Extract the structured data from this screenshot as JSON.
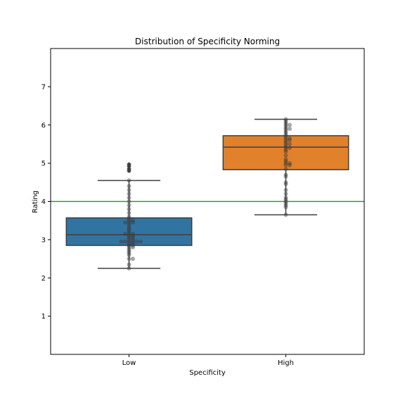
{
  "chart_data": {
    "type": "box",
    "title": "Distribution of Specificity Norming",
    "xlabel": "Specificity",
    "ylabel": "Rating",
    "categories": [
      "Low",
      "High"
    ],
    "ylim": [
      0,
      8
    ],
    "yticks": [
      1,
      2,
      3,
      4,
      5,
      6,
      7
    ],
    "grid": false,
    "reference_line": {
      "y": 4.0,
      "color": "#2ca02c"
    },
    "boxes": [
      {
        "category": "Low",
        "color": "#3274a1",
        "whisker_low": 2.25,
        "q1": 2.85,
        "median": 3.13,
        "q3": 3.57,
        "whisker_high": 4.55,
        "outliers": [
          4.8,
          4.85,
          4.92,
          4.97
        ]
      },
      {
        "category": "High",
        "color": "#e1812c",
        "whisker_low": 3.65,
        "q1": 4.83,
        "median": 5.42,
        "q3": 5.72,
        "whisker_high": 6.15,
        "outliers": []
      }
    ],
    "swarm": [
      {
        "category": "Low",
        "values": [
          2.25,
          2.35,
          2.5,
          2.5,
          2.6,
          2.65,
          2.7,
          2.75,
          2.8,
          2.8,
          2.85,
          2.85,
          2.9,
          2.9,
          2.95,
          2.95,
          2.95,
          2.95,
          2.95,
          2.95,
          3.0,
          3.0,
          3.05,
          3.05,
          3.1,
          3.1,
          3.15,
          3.15,
          3.15,
          3.2,
          3.25,
          3.3,
          3.35,
          3.4,
          3.45,
          3.45,
          3.45,
          3.5,
          3.5,
          3.55,
          3.6,
          3.7,
          3.8,
          3.9,
          4.0,
          4.1,
          4.2,
          4.3,
          4.4,
          4.55,
          4.8,
          4.85,
          4.92,
          4.97
        ]
      },
      {
        "category": "High",
        "values": [
          3.65,
          3.85,
          3.9,
          3.95,
          4.0,
          4.05,
          4.1,
          4.2,
          4.3,
          4.45,
          4.5,
          4.65,
          4.7,
          4.85,
          4.95,
          4.95,
          5.0,
          5.0,
          5.05,
          5.1,
          5.2,
          5.3,
          5.35,
          5.4,
          5.4,
          5.45,
          5.5,
          5.5,
          5.55,
          5.6,
          5.6,
          5.65,
          5.65,
          5.7,
          5.75,
          5.8,
          5.85,
          5.9,
          5.9,
          5.95,
          6.0,
          6.0,
          6.05,
          6.1,
          6.15
        ]
      }
    ]
  }
}
